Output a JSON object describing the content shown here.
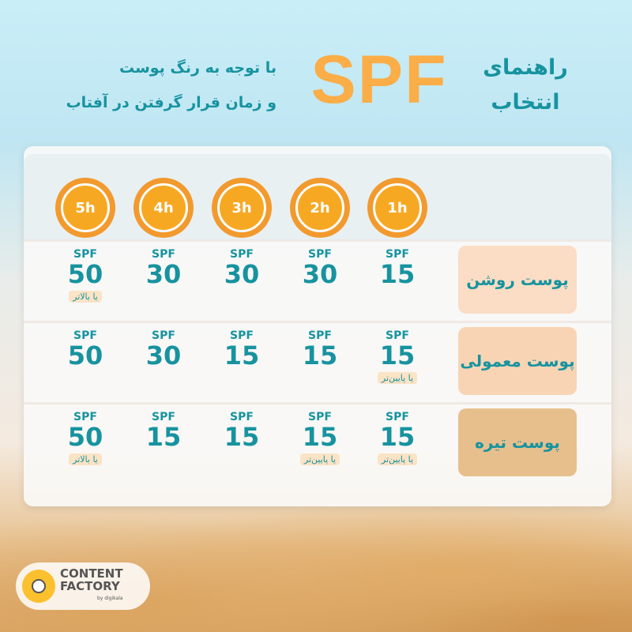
{
  "header": {
    "line1": "با توجه به رنگ پوست",
    "line2": "و زمان قرار گرفتن در آفتاب",
    "spf": "SPF",
    "title1": "راهنمای",
    "title2": "انتخاب"
  },
  "colors": {
    "teal": "#17939f",
    "orange": "#fbad47"
  },
  "hours": [
    "1h",
    "2h",
    "3h",
    "4h",
    "5h"
  ],
  "rows": [
    {
      "label": "پوست روشن",
      "color": "#fbdcc4",
      "cells": [
        {
          "v": "15"
        },
        {
          "v": "30"
        },
        {
          "v": "30"
        },
        {
          "v": "30"
        },
        {
          "v": "50",
          "badge": "یا بالاتر"
        }
      ]
    },
    {
      "label": "پوست معمولی",
      "color": "#f8d4b5",
      "cells": [
        {
          "v": "15",
          "badge": "یا پایین‌تر"
        },
        {
          "v": "15"
        },
        {
          "v": "15"
        },
        {
          "v": "30"
        },
        {
          "v": "50"
        }
      ]
    },
    {
      "label": "پوست تیره",
      "color": "#e7bf8d",
      "cells": [
        {
          "v": "15",
          "badge": "یا پایین‌تر"
        },
        {
          "v": "15",
          "badge": "یا پایین‌تر"
        },
        {
          "v": "15"
        },
        {
          "v": "15"
        },
        {
          "v": "50",
          "badge": "یا بالاتر"
        }
      ]
    }
  ],
  "spf_prefix": "SPF",
  "logo": {
    "line1": "CONTENT",
    "line2": "FACTORY",
    "by": "by digikala"
  }
}
